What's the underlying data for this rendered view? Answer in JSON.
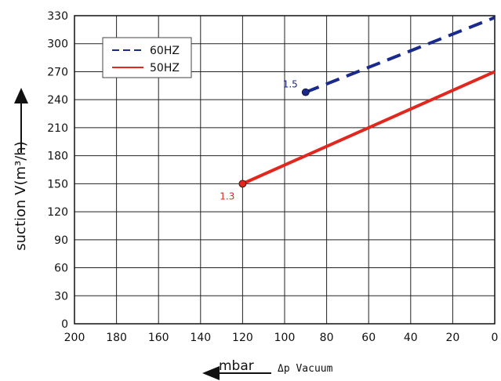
{
  "chart_data": {
    "type": "line",
    "ylabel": "suction V(m³/h)",
    "xlabel_unit": "mbar",
    "xlabel_sub": "Δp Vacuum",
    "xlim": [
      200,
      0
    ],
    "ylim": [
      0,
      330
    ],
    "x_ticks": [
      "200",
      "180",
      "160",
      "140",
      "120",
      "100",
      "80",
      "60",
      "40",
      "20",
      "0"
    ],
    "y_ticks": [
      "0",
      "30",
      "60",
      "90",
      "120",
      "150",
      "180",
      "210",
      "240",
      "270",
      "300",
      "330"
    ],
    "grid": true,
    "legend_position": "top-left",
    "series": [
      {
        "name": "60HZ",
        "color": "#1a2a8c",
        "style": "dashed",
        "x": [
          90,
          0
        ],
        "y": [
          248,
          328
        ],
        "marker_label": "1.5",
        "marker_label_color": "#1a2a8c"
      },
      {
        "name": "50HZ",
        "color": "#e0281e",
        "style": "solid",
        "x": [
          120,
          0
        ],
        "y": [
          150,
          270
        ],
        "marker_label": "1.3",
        "marker_label_color": "#e0281e"
      }
    ]
  }
}
